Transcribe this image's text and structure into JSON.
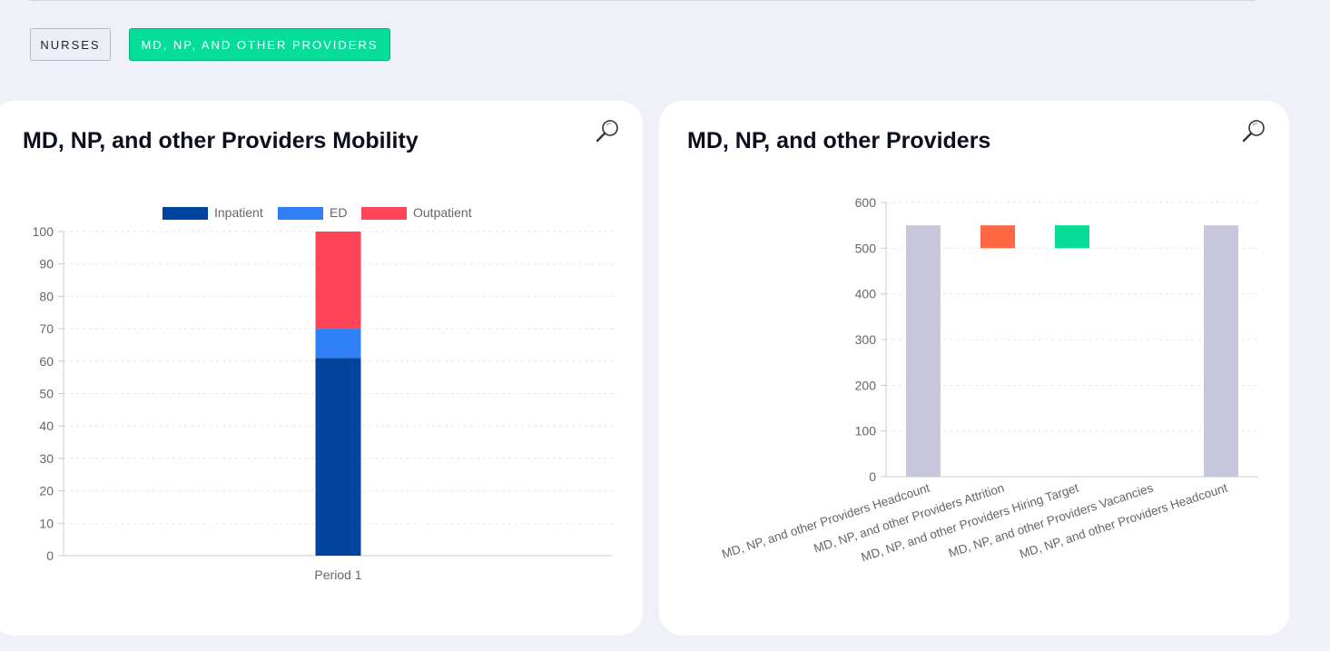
{
  "tabs": [
    {
      "label": "NURSES",
      "active": false
    },
    {
      "label": "MD, NP, AND OTHER PROVIDERS",
      "active": true
    }
  ],
  "colors": {
    "inpatient": "#00449e",
    "ed": "#2f7ff6",
    "outpatient": "#ff455a",
    "headcount": "#c8c6da",
    "attrition": "#ff6845",
    "hiring": "#06de97",
    "active_tab": "#06de97"
  },
  "icons": {
    "zoom": "magnifier-icon"
  },
  "chart_data": [
    {
      "type": "bar",
      "stacked": true,
      "title": "MD, NP, and other Providers Mobility",
      "categories": [
        "Period 1"
      ],
      "series": [
        {
          "name": "Inpatient",
          "values": [
            61
          ]
        },
        {
          "name": "ED",
          "values": [
            9
          ]
        },
        {
          "name": "Outpatient",
          "values": [
            30
          ]
        }
      ],
      "ylim": [
        0,
        100
      ],
      "yticks": [
        0,
        10,
        20,
        30,
        40,
        50,
        60,
        70,
        80,
        90,
        100
      ],
      "legend": "top-center",
      "grid": true
    },
    {
      "type": "bar",
      "subtype": "waterfall",
      "title": "MD, NP, and other Providers",
      "categories": [
        "MD, NP, and other Providers Headcount",
        "MD, NP, and other Providers Attrition",
        "MD, NP, and other Providers Hiring Target",
        "MD, NP, and other Providers Vacancies",
        "MD, NP, and other Providers Headcount"
      ],
      "ranges": [
        [
          0,
          550
        ],
        [
          500,
          550
        ],
        [
          500,
          550
        ],
        null,
        [
          0,
          550
        ]
      ],
      "ylim": [
        0,
        600
      ],
      "yticks": [
        0,
        100,
        200,
        300,
        400,
        500,
        600
      ],
      "grid": true
    }
  ]
}
